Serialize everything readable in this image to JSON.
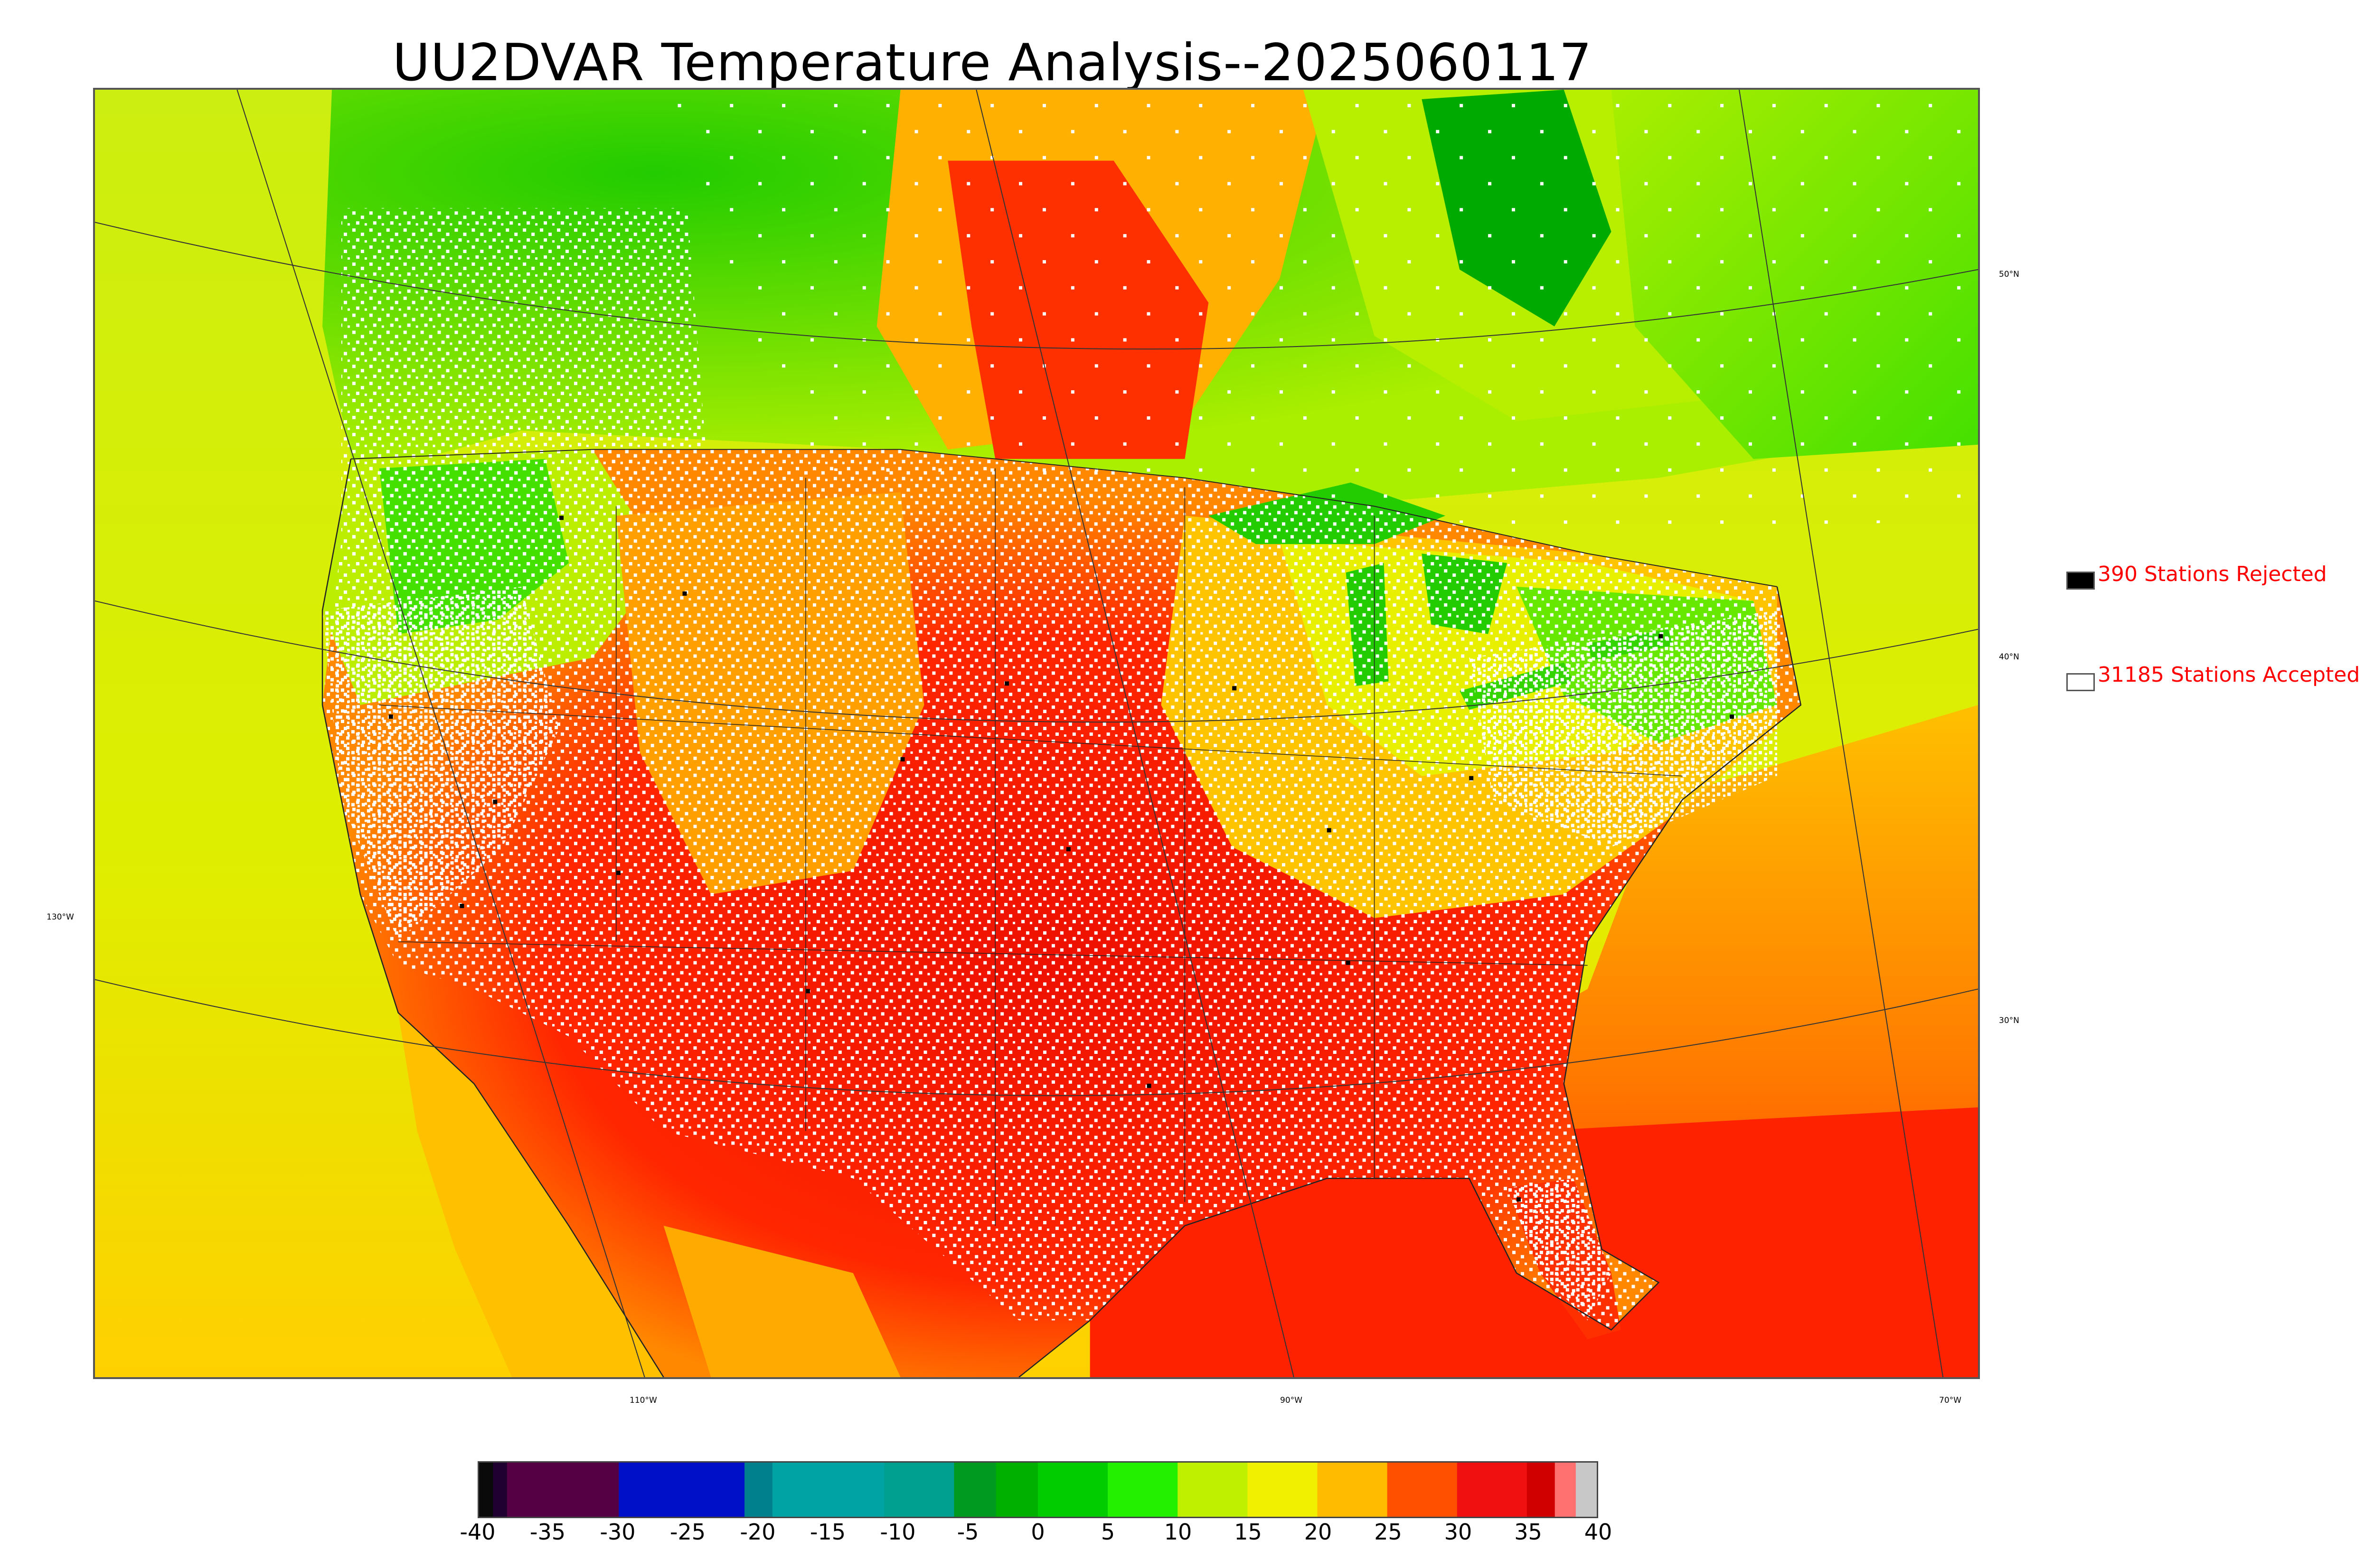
{
  "title": "UU2DVAR Temperature Analysis--2025060117",
  "map": {
    "latitude_labels": [
      "50°N",
      "40°N",
      "30°N"
    ],
    "longitude_labels": [
      "130°W",
      "110°W",
      "90°W",
      "70°W"
    ],
    "colors": {
      "ocean_pacific": "#d8ee0c",
      "ocean_atlantic_south": "#ff3a00",
      "land_hot": "#ff1a00",
      "land_warm": "#ffa400",
      "land_mild": "#e8f000",
      "land_cool": "#44ee00",
      "canada_cool": "#22dd00",
      "lakes": "#00aa00",
      "stations_accepted": "#ffffff",
      "stations_rejected": "#000000"
    }
  },
  "legend": {
    "rejected_label": "390 Stations Rejected",
    "accepted_label": "31185 Stations Accepted",
    "rejected_color": "#000000",
    "accepted_color": "#ffffff"
  },
  "colorbar": {
    "ticks": [
      "-40",
      "-35",
      "-30",
      "-25",
      "-20",
      "-15",
      "-10",
      "-5",
      "0",
      "5",
      "10",
      "15",
      "20",
      "25",
      "30",
      "35",
      "40"
    ],
    "range": [
      -40,
      40
    ],
    "segments": [
      {
        "from": -40,
        "to": -39,
        "color": "#0a0a0a"
      },
      {
        "from": -39,
        "to": -38,
        "color": "#200030"
      },
      {
        "from": -38,
        "to": -30,
        "color": "#550044"
      },
      {
        "from": -30,
        "to": -21,
        "color": "#0010c8"
      },
      {
        "from": -21,
        "to": -19,
        "color": "#00808c"
      },
      {
        "from": -19,
        "to": -11,
        "color": "#00a3a3"
      },
      {
        "from": -11,
        "to": -6,
        "color": "#00a090"
      },
      {
        "from": -6,
        "to": -3,
        "color": "#009a20"
      },
      {
        "from": -3,
        "to": 0,
        "color": "#00b000"
      },
      {
        "from": 0,
        "to": 5,
        "color": "#00cc00"
      },
      {
        "from": 5,
        "to": 10,
        "color": "#22f000"
      },
      {
        "from": 10,
        "to": 15,
        "color": "#bff000"
      },
      {
        "from": 15,
        "to": 20,
        "color": "#f0f000"
      },
      {
        "from": 20,
        "to": 25,
        "color": "#ffbb00"
      },
      {
        "from": 25,
        "to": 30,
        "color": "#ff5000"
      },
      {
        "from": 30,
        "to": 35,
        "color": "#f01010"
      },
      {
        "from": 35,
        "to": 37,
        "color": "#d00000"
      },
      {
        "from": 37,
        "to": 38.5,
        "color": "#ff7070"
      },
      {
        "from": 38.5,
        "to": 40,
        "color": "#c8c8c8"
      }
    ]
  }
}
